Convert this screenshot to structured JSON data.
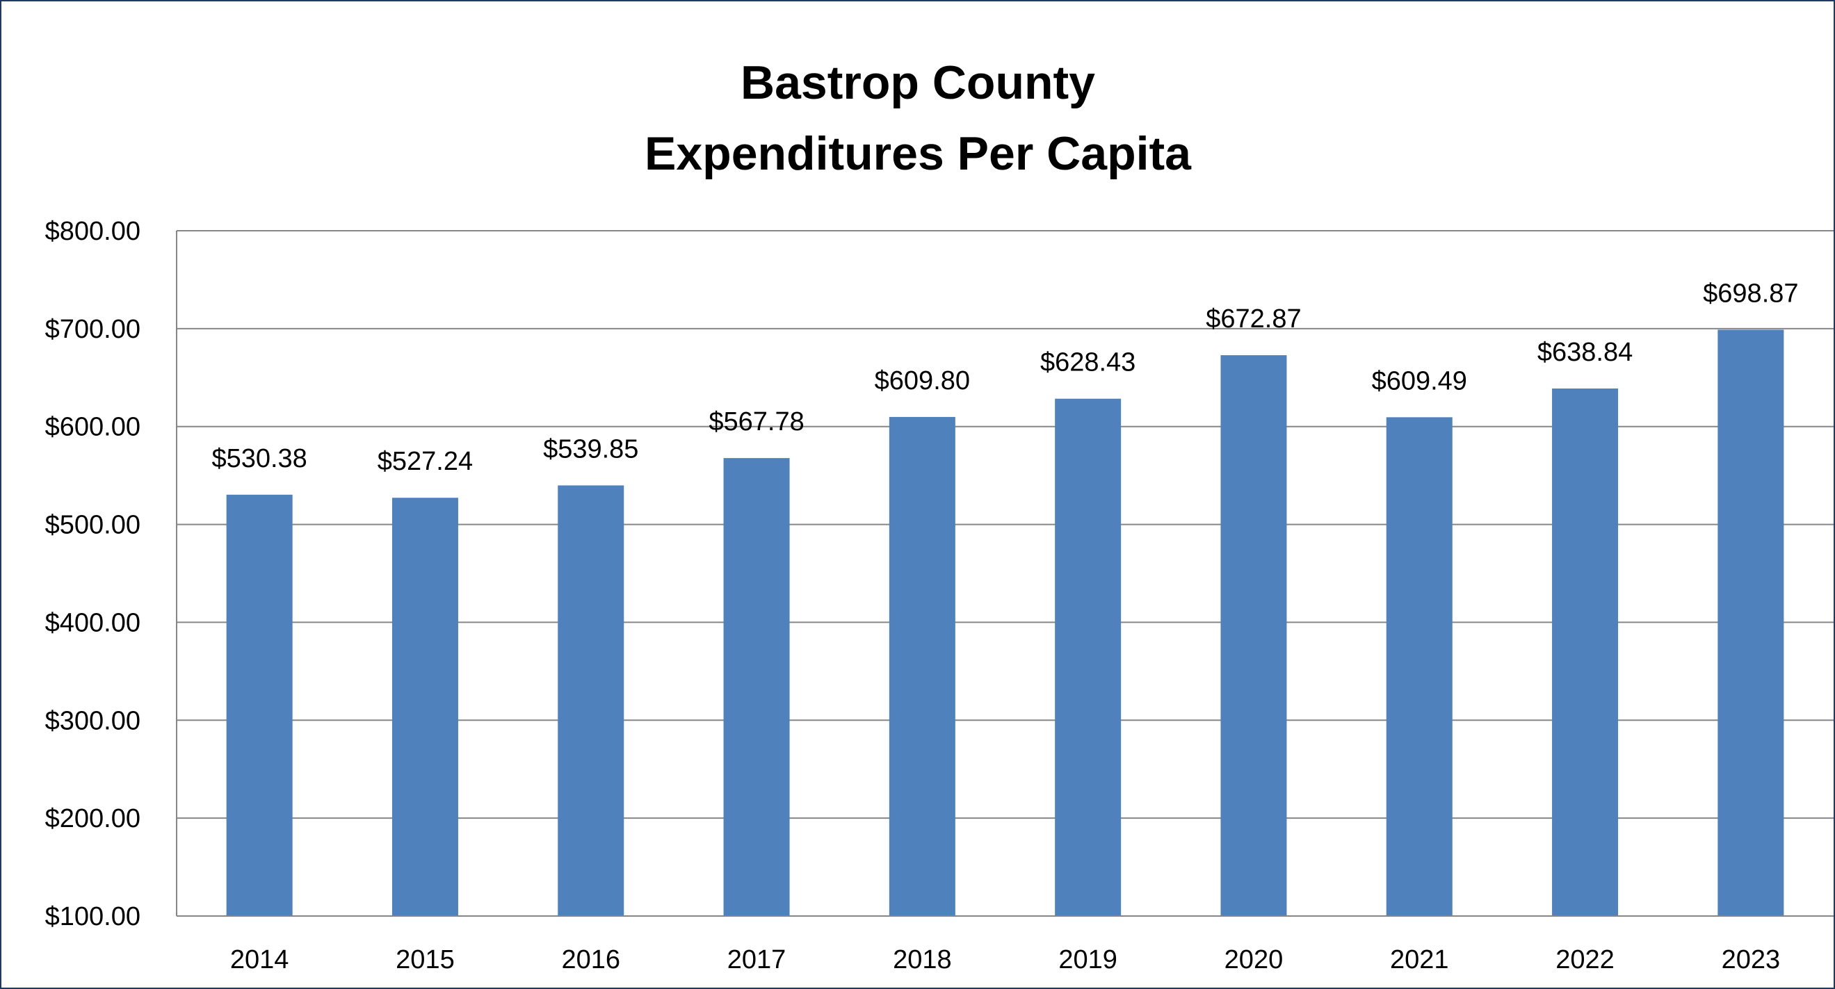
{
  "chart_data": {
    "type": "bar",
    "title": "Bastrop County",
    "subtitle": "Expenditures Per Capita",
    "categories": [
      "2014",
      "2015",
      "2016",
      "2017",
      "2018",
      "2019",
      "2020",
      "2021",
      "2022",
      "2023"
    ],
    "values": [
      530.38,
      527.24,
      539.85,
      567.78,
      609.8,
      628.43,
      672.87,
      609.49,
      638.84,
      698.87
    ],
    "data_labels": [
      "$530.38",
      "$527.24",
      "$539.85",
      "$567.78",
      "$609.80",
      "$628.43",
      "$672.87",
      "$609.49",
      "$638.84",
      "$698.87"
    ],
    "y_ticks": [
      100,
      200,
      300,
      400,
      500,
      600,
      700,
      800
    ],
    "y_tick_labels": [
      "$100.00",
      "$200.00",
      "$300.00",
      "$400.00",
      "$500.00",
      "$600.00",
      "$700.00",
      "$800.00"
    ],
    "ylim": [
      100,
      800
    ],
    "xlabel": "",
    "ylabel": "",
    "grid": true,
    "legend": "none",
    "colors": {
      "bar": "#4f81bd",
      "grid": "#868686",
      "frame": "#1f3864"
    }
  }
}
